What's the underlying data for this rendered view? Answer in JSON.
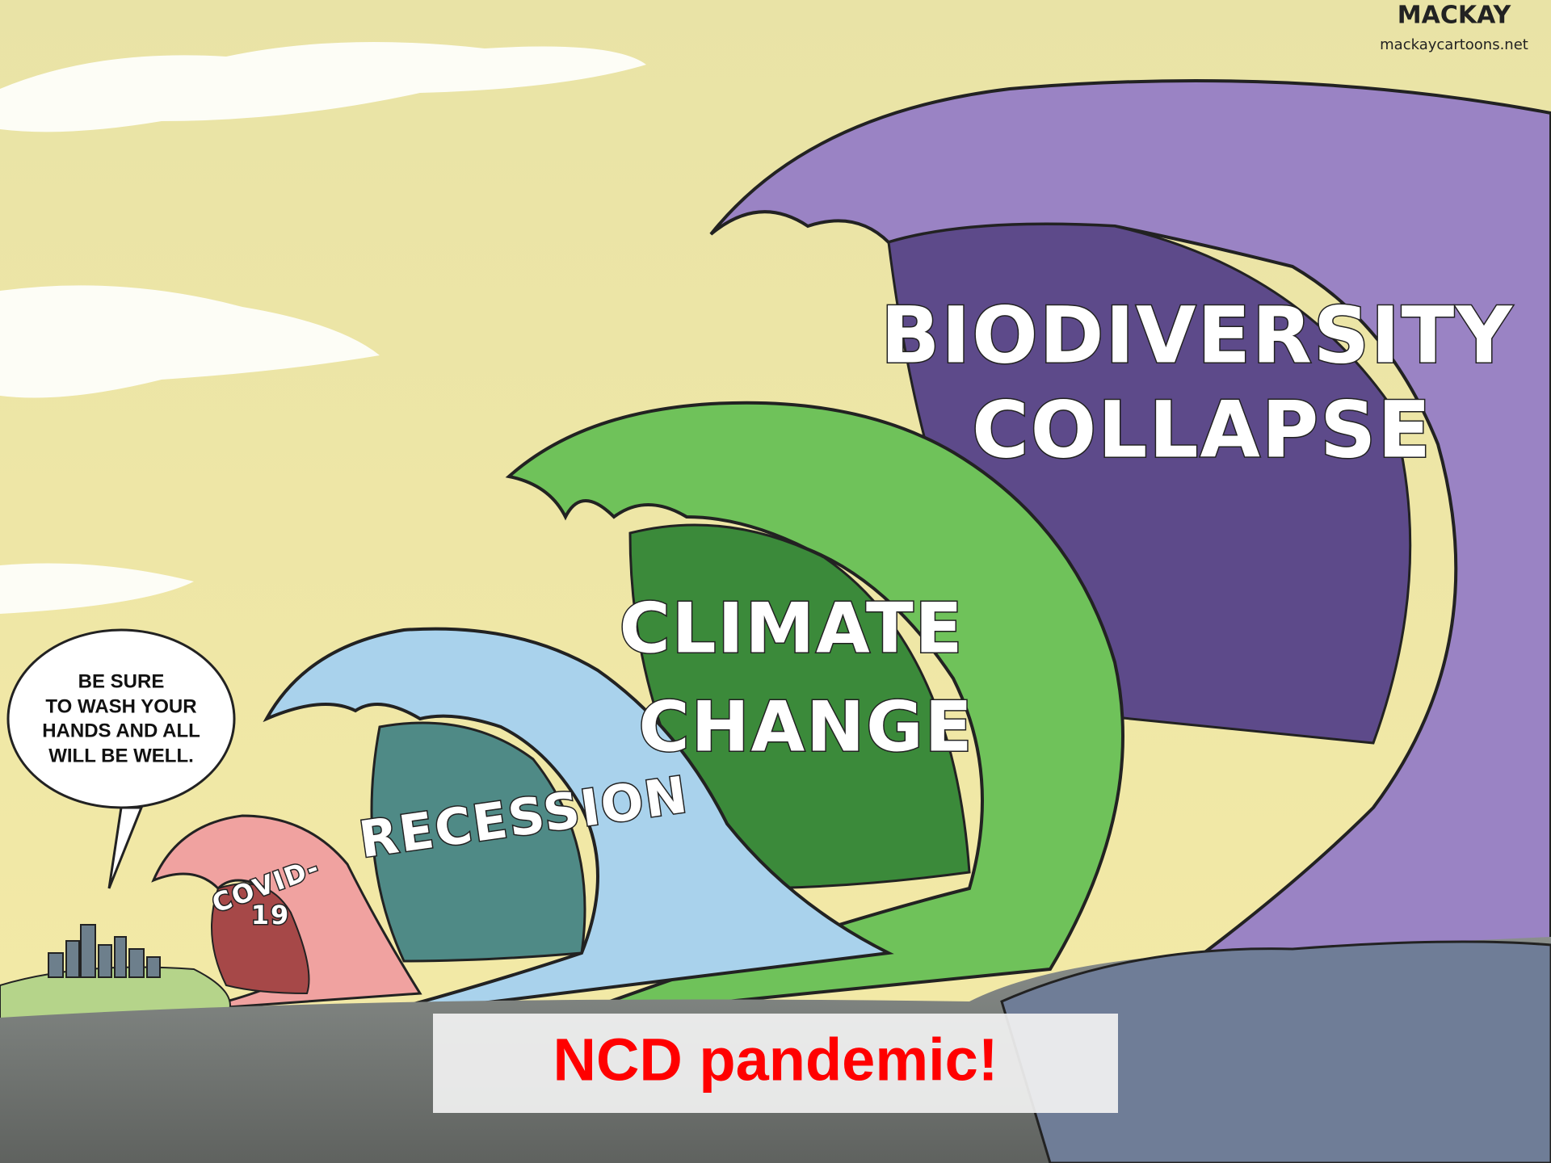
{
  "signature": {
    "name": "MACKAY",
    "url": "mackaycartoons.net"
  },
  "speech_bubble": {
    "lines": [
      "BE SURE",
      "TO WASH YOUR",
      "HANDS AND ALL",
      "WILL BE WELL."
    ]
  },
  "waves": [
    {
      "label": [
        "BIODIVERSITY",
        "COLLAPSE"
      ]
    },
    {
      "label": [
        "CLIMATE",
        "CHANGE"
      ]
    },
    {
      "label": [
        "RECESSION"
      ]
    },
    {
      "label": [
        "COVID-",
        "19"
      ]
    }
  ],
  "caption": "NCD pandemic!"
}
